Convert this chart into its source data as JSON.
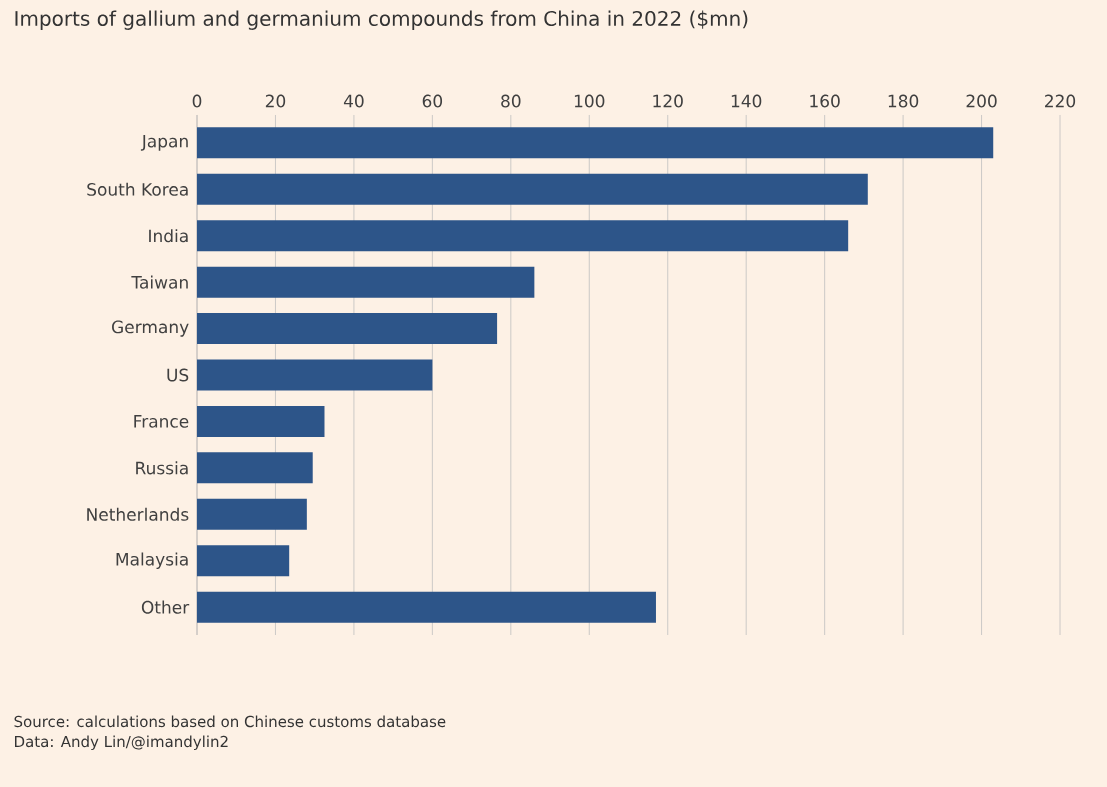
{
  "chart_data": {
    "type": "bar",
    "orientation": "horizontal",
    "title": "Imports of gallium and germanium compounds from China in 2022 ($mn)",
    "categories": [
      "Japan",
      "South Korea",
      "India",
      "Taiwan",
      "Germany",
      "US",
      "France",
      "Russia",
      "Netherlands",
      "Malaysia",
      "Other"
    ],
    "values": [
      203,
      171,
      166,
      86,
      76.5,
      60,
      32.5,
      29.5,
      28,
      23.5,
      117
    ],
    "color": "#2d5589",
    "xlim": [
      0,
      220
    ],
    "xticks": [
      0,
      20,
      40,
      60,
      80,
      100,
      120,
      140,
      160,
      180,
      200,
      220
    ],
    "grid": "x",
    "annotations": [
      "Source: calculations based on Chinese customs database",
      "Data: Andy Lin/@imandylin2"
    ]
  }
}
